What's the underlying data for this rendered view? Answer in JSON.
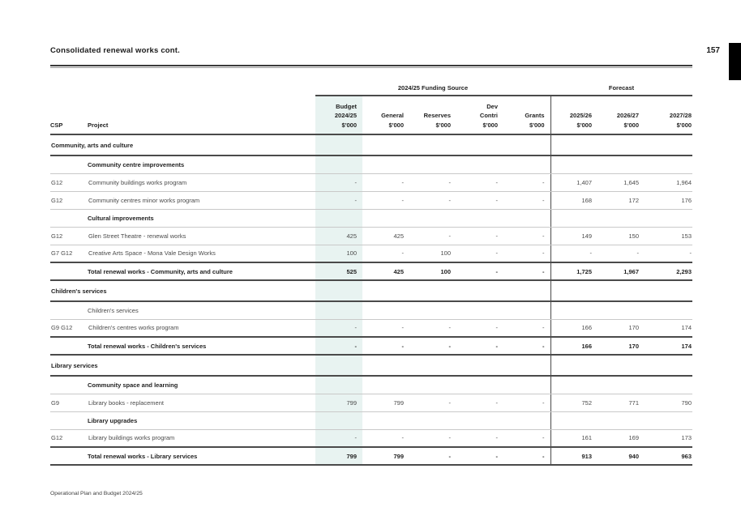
{
  "page": {
    "title": "Consolidated renewal works cont.",
    "page_number": "157",
    "footer": "Operational Plan and Budget 2024/25"
  },
  "colors": {
    "highlight_column": "#e8f3f1",
    "edge_tab": "#000000",
    "rule": "#3a3a3a"
  },
  "table": {
    "group_headers": {
      "funding_source": "2024/25 Funding Source",
      "forecast": "Forecast"
    },
    "columns": {
      "csp": "CSP",
      "project": "Project",
      "budget": "Budget\n2024/25\n$'000",
      "general": "General\n$'000",
      "reserves": "Reserves\n$'000",
      "dev_contri": "Dev\nContri\n$'000",
      "grants": "Grants\n$'000",
      "forecast_1": "2025/26\n$'000",
      "forecast_2": "2026/27\n$'000",
      "forecast_3": "2027/28\n$'000"
    },
    "rows": [
      {
        "type": "section",
        "border": "thick",
        "label": "Community, arts and culture",
        "values": [
          "",
          "",
          "",
          "",
          "",
          "",
          "",
          ""
        ]
      },
      {
        "type": "subheading",
        "border": "thin",
        "label": "Community centre improvements",
        "values": [
          "",
          "",
          "",
          "",
          "",
          "",
          "",
          ""
        ]
      },
      {
        "type": "data",
        "border": "thin",
        "csp": "G12",
        "project": "Community buildings works program",
        "values": [
          "-",
          "-",
          "-",
          "-",
          "-",
          "1,407",
          "1,645",
          "1,964"
        ]
      },
      {
        "type": "data",
        "border": "thin",
        "csp": "G12",
        "project": "Community centres minor works program",
        "values": [
          "-",
          "-",
          "-",
          "-",
          "-",
          "168",
          "172",
          "176"
        ]
      },
      {
        "type": "subheading",
        "border": "thin",
        "label": "Cultural improvements",
        "values": [
          "",
          "",
          "",
          "",
          "",
          "",
          "",
          ""
        ]
      },
      {
        "type": "data",
        "border": "thin",
        "csp": "G12",
        "project": "Glen Street Theatre - renewal works",
        "values": [
          "425",
          "425",
          "-",
          "-",
          "-",
          "149",
          "150",
          "153"
        ]
      },
      {
        "type": "data",
        "border": "thick",
        "csp": "G7 G12",
        "project": "Creative Arts Space - Mona Vale Design Works",
        "values": [
          "100",
          "-",
          "100",
          "-",
          "-",
          "-",
          "-",
          "-"
        ]
      },
      {
        "type": "total",
        "border": "thick",
        "label": "Total renewal works - Community, arts and culture",
        "values": [
          "525",
          "425",
          "100",
          "-",
          "-",
          "1,725",
          "1,967",
          "2,293"
        ]
      },
      {
        "type": "section",
        "border": "thick",
        "label": "Children's services",
        "values": [
          "",
          "",
          "",
          "",
          "",
          "",
          "",
          ""
        ]
      },
      {
        "type": "subheading-regular",
        "border": "thin",
        "label": "Children's services",
        "values": [
          "",
          "",
          "",
          "",
          "",
          "",
          "",
          ""
        ]
      },
      {
        "type": "data",
        "border": "thick",
        "csp": "G9 G12",
        "project": "Children's centres works program",
        "values": [
          "-",
          "-",
          "-",
          "-",
          "-",
          "166",
          "170",
          "174"
        ]
      },
      {
        "type": "total",
        "border": "thick",
        "label": "Total renewal works - Children's services",
        "values": [
          "-",
          "-",
          "-",
          "-",
          "-",
          "166",
          "170",
          "174"
        ]
      },
      {
        "type": "section",
        "border": "thick",
        "label": "Library services",
        "values": [
          "",
          "",
          "",
          "",
          "",
          "",
          "",
          ""
        ]
      },
      {
        "type": "subheading",
        "border": "thin",
        "label": "Community space and learning",
        "values": [
          "",
          "",
          "",
          "",
          "",
          "",
          "",
          ""
        ]
      },
      {
        "type": "data",
        "border": "thin",
        "csp": "G9",
        "project": "Library books - replacement",
        "values": [
          "799",
          "799",
          "-",
          "-",
          "-",
          "752",
          "771",
          "790"
        ]
      },
      {
        "type": "subheading",
        "border": "thin",
        "label": "Library upgrades",
        "values": [
          "",
          "",
          "",
          "",
          "",
          "",
          "",
          ""
        ]
      },
      {
        "type": "data",
        "border": "thick",
        "csp": "G12",
        "project": "Library buildings works program",
        "values": [
          "-",
          "-",
          "-",
          "-",
          "-",
          "161",
          "169",
          "173"
        ]
      },
      {
        "type": "total",
        "border": "thick",
        "label": "Total renewal works - Library services",
        "values": [
          "799",
          "799",
          "-",
          "-",
          "-",
          "913",
          "940",
          "963"
        ]
      }
    ]
  }
}
